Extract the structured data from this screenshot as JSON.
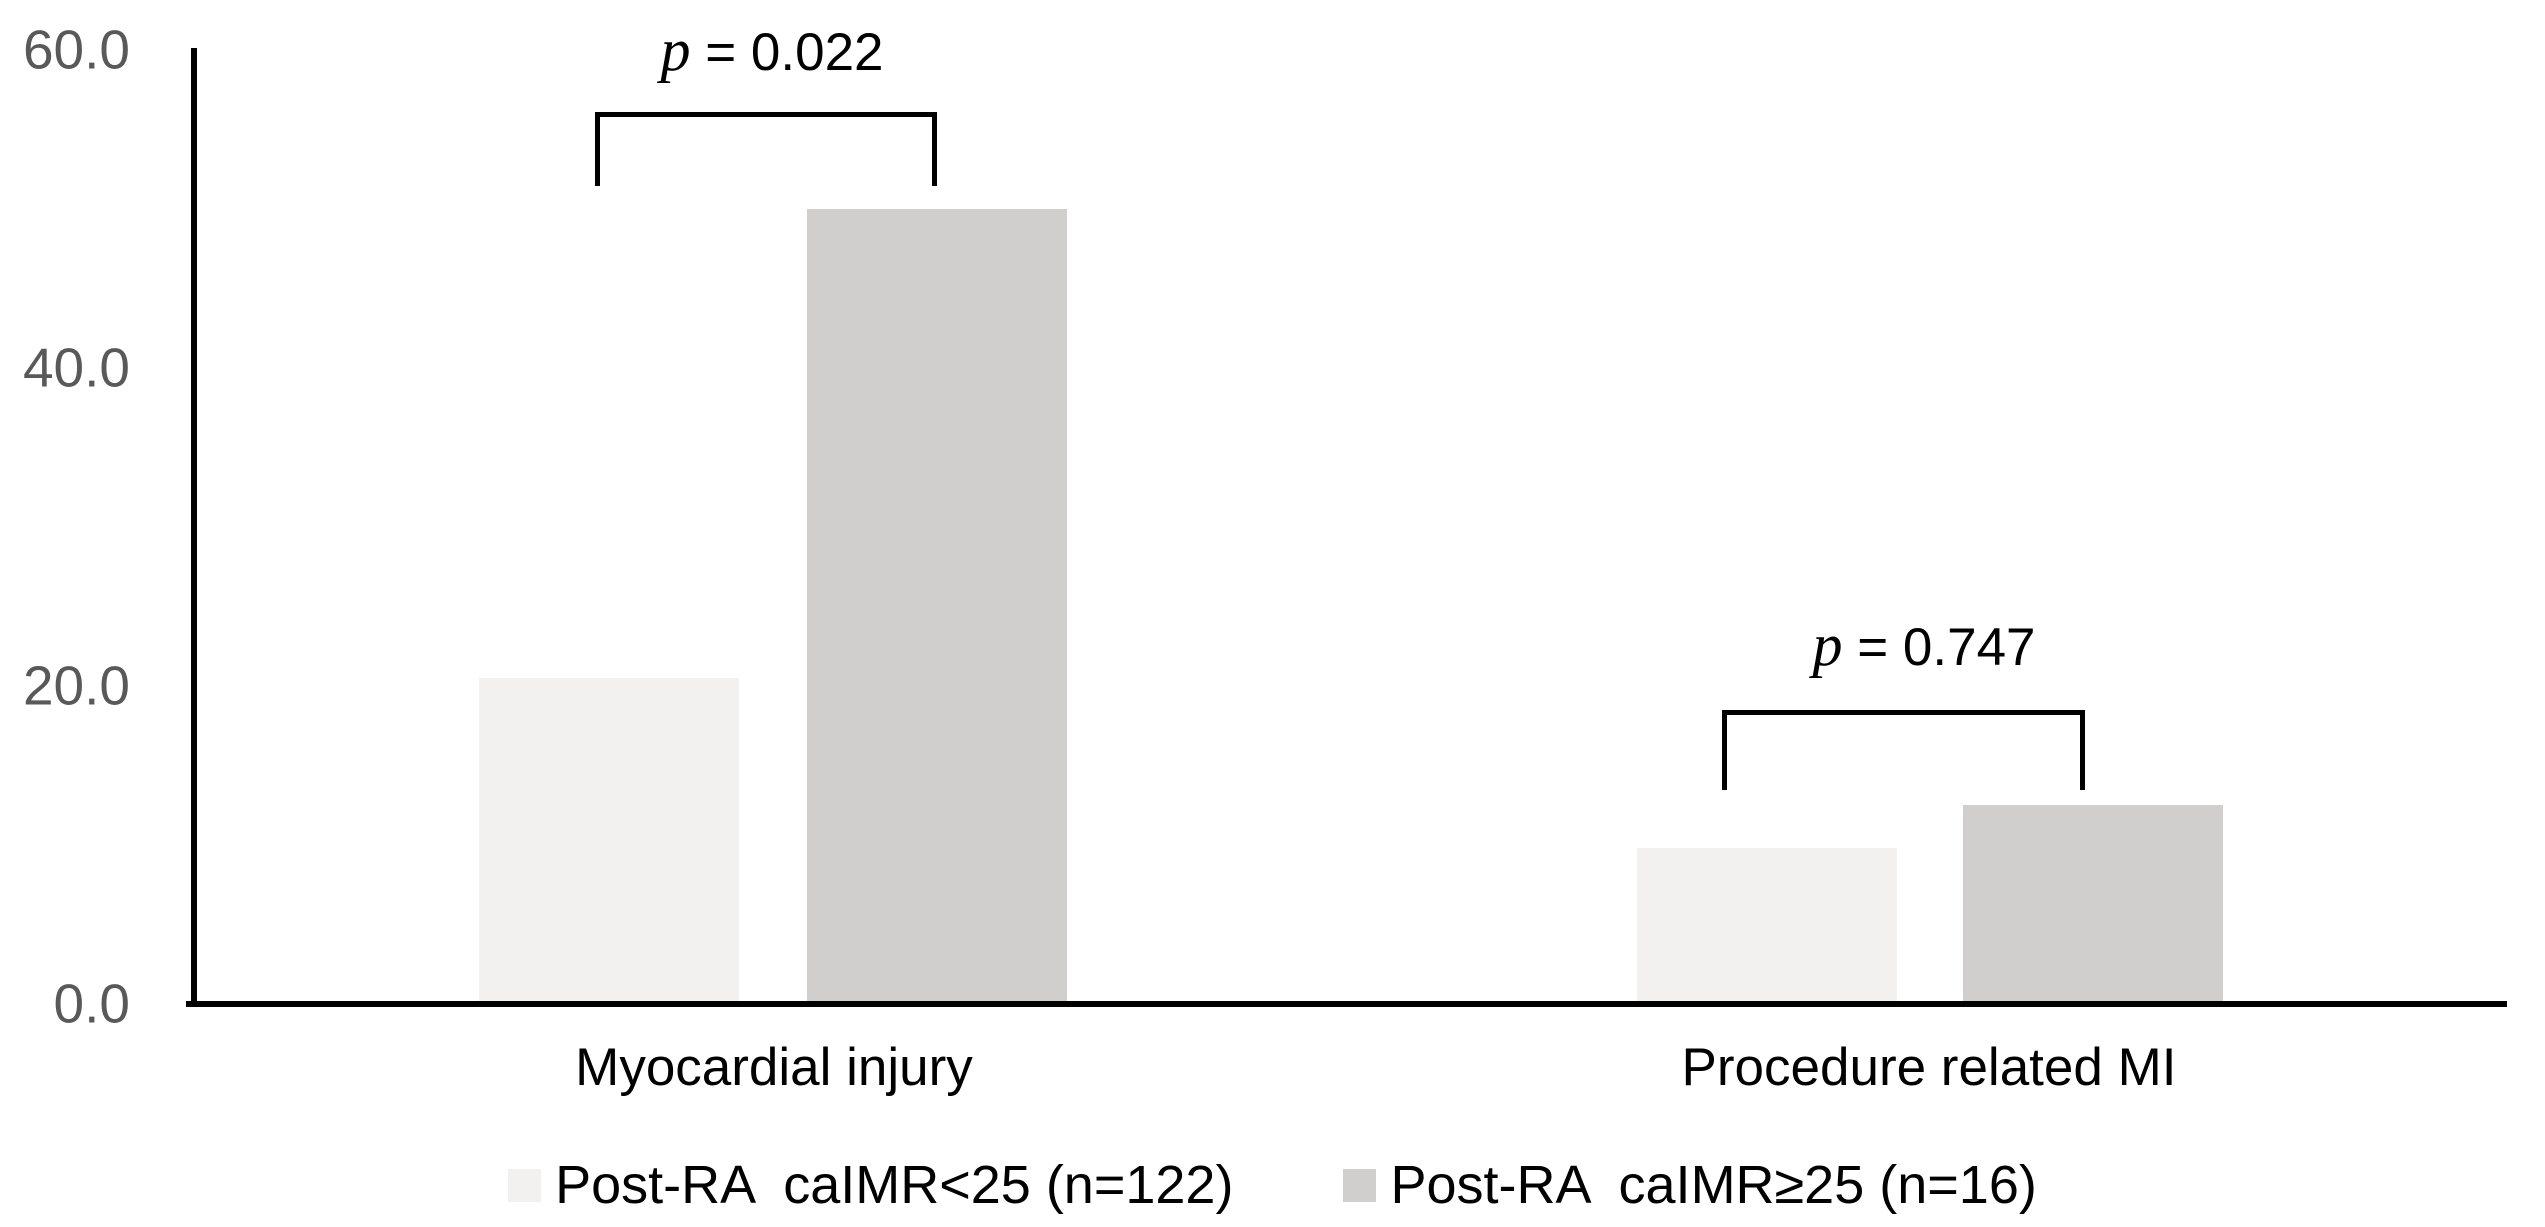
{
  "chart_data": {
    "type": "bar",
    "title": "",
    "xlabel": "",
    "ylabel": "",
    "categories": [
      "Myocardial injury",
      "Procedure related MI"
    ],
    "series": [
      {
        "name": "Post-RA  caIMR<25 (n=122)",
        "color": "#f2f1f0",
        "values": [
          20.5,
          9.8
        ]
      },
      {
        "name": "Post-RA  caIMR≥25 (n=16)",
        "color": "#d0cfce",
        "values": [
          50.0,
          12.5
        ]
      }
    ],
    "ylim": [
      0,
      60
    ],
    "yticks": [
      {
        "label": "60.0",
        "value": 60
      },
      {
        "label": "40.0",
        "value": 40
      },
      {
        "label": "20.0",
        "value": 20
      },
      {
        "label": "0.0",
        "value": 0
      }
    ],
    "grid": false,
    "legend_position": "bottom-center",
    "annotations": [
      {
        "p": "p",
        "rest": " = 0.022",
        "category": "Myocardial injury"
      },
      {
        "p": "p",
        "rest": " = 0.747",
        "category": "Procedure related MI"
      }
    ]
  },
  "colors": {
    "background": "#ffffff",
    "axis_line": "#000000",
    "tick_label": "#595959",
    "text": "#000000"
  }
}
